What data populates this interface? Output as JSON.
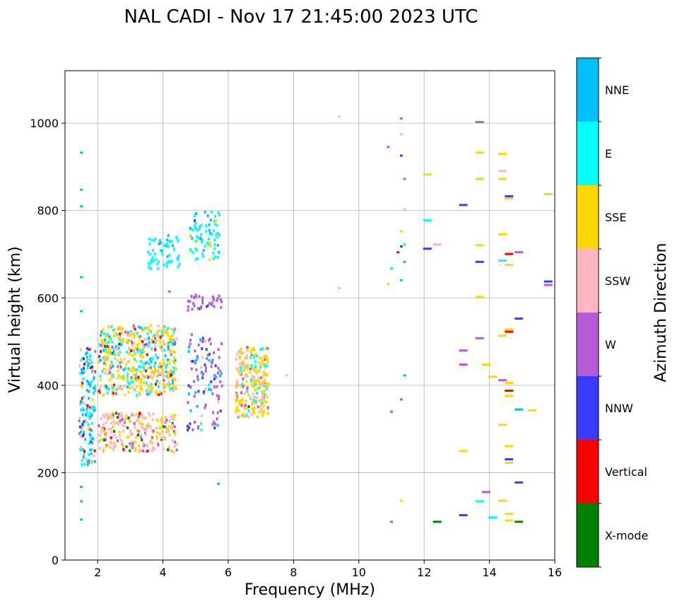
{
  "chart_data": {
    "type": "scatter",
    "title": "NAL CADI - Nov 17 21:45:00 2023 UTC",
    "xlabel": "Frequency (MHz)",
    "ylabel": "Virtual height (km)",
    "xlim": [
      1,
      16
    ],
    "ylim": [
      0,
      1120
    ],
    "xticks": [
      2,
      4,
      6,
      8,
      10,
      12,
      14,
      16
    ],
    "yticks": [
      0,
      200,
      400,
      600,
      800,
      1000
    ],
    "grid": true,
    "colorbar": {
      "label": "Azimuth Direction",
      "categories": [
        {
          "name": "X-mode",
          "color": "#008000"
        },
        {
          "name": "Vertical",
          "color": "#ff0000"
        },
        {
          "name": "NNW",
          "color": "#3a3aff"
        },
        {
          "name": "W",
          "color": "#b65ad6"
        },
        {
          "name": "SSW",
          "color": "#ffb6c1"
        },
        {
          "name": "SSE",
          "color": "#ffd700"
        },
        {
          "name": "E",
          "color": "#00ffff"
        },
        {
          "name": "NNE",
          "color": "#00bfff"
        }
      ]
    },
    "clusters": [
      {
        "x": [
          1.4,
          1.9
        ],
        "y": [
          220,
          490
        ],
        "n": 160,
        "dirs": [
          "NNE",
          "E",
          "SSW",
          "Vertical",
          "NNW",
          "SSE"
        ]
      },
      {
        "x": [
          2.0,
          4.4
        ],
        "y": [
          380,
          540
        ],
        "n": 520,
        "dirs": [
          "SSE",
          "E",
          "NNE",
          "SSW",
          "W",
          "Vertical",
          "X-mode"
        ]
      },
      {
        "x": [
          2.0,
          4.4
        ],
        "y": [
          250,
          340
        ],
        "n": 260,
        "dirs": [
          "SSW",
          "SSE",
          "W",
          "X-mode",
          "Vertical"
        ]
      },
      {
        "x": [
          3.5,
          4.5
        ],
        "y": [
          670,
          750
        ],
        "n": 60,
        "dirs": [
          "E",
          "NNE"
        ]
      },
      {
        "x": [
          4.8,
          5.7
        ],
        "y": [
          690,
          800
        ],
        "n": 80,
        "dirs": [
          "E",
          "NNE",
          "SSE",
          "NNW"
        ]
      },
      {
        "x": [
          4.7,
          5.8
        ],
        "y": [
          575,
          610
        ],
        "n": 35,
        "dirs": [
          "W",
          "NNW"
        ]
      },
      {
        "x": [
          4.7,
          5.8
        ],
        "y": [
          300,
          520
        ],
        "n": 110,
        "dirs": [
          "W",
          "NNE",
          "NNW",
          "SSW",
          "E"
        ]
      },
      {
        "x": [
          6.2,
          7.2
        ],
        "y": [
          330,
          490
        ],
        "n": 260,
        "dirs": [
          "SSE",
          "SSW",
          "E",
          "W",
          "X-mode"
        ]
      }
    ],
    "points": [
      {
        "x": 1.5,
        "y": 935,
        "dir": "NNE"
      },
      {
        "x": 1.5,
        "y": 850,
        "dir": "NNE"
      },
      {
        "x": 1.5,
        "y": 812,
        "dir": "NNE"
      },
      {
        "x": 1.5,
        "y": 650,
        "dir": "NNE"
      },
      {
        "x": 1.5,
        "y": 572,
        "dir": "NNE"
      },
      {
        "x": 1.5,
        "y": 170,
        "dir": "NNE"
      },
      {
        "x": 1.5,
        "y": 137,
        "dir": "NNE"
      },
      {
        "x": 1.5,
        "y": 95,
        "dir": "NNE"
      },
      {
        "x": 4.2,
        "y": 617,
        "dir": "W"
      },
      {
        "x": 5.7,
        "y": 177,
        "dir": "NNE"
      },
      {
        "x": 7.8,
        "y": 425,
        "dir": "SSW"
      },
      {
        "x": 9.4,
        "y": 1017,
        "dir": "SSW"
      },
      {
        "x": 9.4,
        "y": 625,
        "dir": "SSW"
      },
      {
        "x": 10.9,
        "y": 948,
        "dir": "W"
      },
      {
        "x": 10.9,
        "y": 635,
        "dir": "SSE"
      },
      {
        "x": 11.0,
        "y": 670,
        "dir": "E"
      },
      {
        "x": 11.0,
        "y": 342,
        "dir": "W"
      },
      {
        "x": 11.0,
        "y": 90,
        "dir": "W"
      },
      {
        "x": 11.3,
        "y": 1013,
        "dir": "W"
      },
      {
        "x": 11.3,
        "y": 977,
        "dir": "SSW"
      },
      {
        "x": 11.3,
        "y": 928,
        "dir": "NNW"
      },
      {
        "x": 11.3,
        "y": 755,
        "dir": "SSE"
      },
      {
        "x": 11.3,
        "y": 720,
        "dir": "X-mode"
      },
      {
        "x": 11.3,
        "y": 643,
        "dir": "NNE"
      },
      {
        "x": 11.2,
        "y": 707,
        "dir": "Vertical"
      },
      {
        "x": 11.3,
        "y": 370,
        "dir": "W"
      },
      {
        "x": 11.3,
        "y": 138,
        "dir": "SSE"
      },
      {
        "x": 11.4,
        "y": 875,
        "dir": "W"
      },
      {
        "x": 11.4,
        "y": 805,
        "dir": "SSW"
      },
      {
        "x": 11.4,
        "y": 725,
        "dir": "E"
      },
      {
        "x": 11.4,
        "y": 685,
        "dir": "NNE"
      },
      {
        "x": 11.4,
        "y": 425,
        "dir": "NNE"
      },
      {
        "x": 12.1,
        "y": 885,
        "dir": "SSE"
      },
      {
        "x": 12.1,
        "y": 780,
        "dir": "E"
      },
      {
        "x": 12.1,
        "y": 715,
        "dir": "NNW"
      },
      {
        "x": 12.4,
        "y": 725,
        "dir": "SSW"
      },
      {
        "x": 12.4,
        "y": 90,
        "dir": "X-mode"
      },
      {
        "x": 13.2,
        "y": 815,
        "dir": "NNW"
      },
      {
        "x": 13.2,
        "y": 482,
        "dir": "W"
      },
      {
        "x": 13.2,
        "y": 450,
        "dir": "W"
      },
      {
        "x": 13.2,
        "y": 252,
        "dir": "SSE"
      },
      {
        "x": 13.2,
        "y": 105,
        "dir": "NNW"
      },
      {
        "x": 13.7,
        "y": 1005,
        "dir": "W"
      },
      {
        "x": 13.7,
        "y": 935,
        "dir": "SSE"
      },
      {
        "x": 13.7,
        "y": 875,
        "dir": "SSE"
      },
      {
        "x": 13.7,
        "y": 723,
        "dir": "SSE"
      },
      {
        "x": 13.7,
        "y": 685,
        "dir": "NNW"
      },
      {
        "x": 13.7,
        "y": 605,
        "dir": "SSE"
      },
      {
        "x": 13.7,
        "y": 510,
        "dir": "W"
      },
      {
        "x": 13.7,
        "y": 137,
        "dir": "E"
      },
      {
        "x": 13.9,
        "y": 450,
        "dir": "SSE"
      },
      {
        "x": 13.9,
        "y": 158,
        "dir": "W"
      },
      {
        "x": 14.1,
        "y": 422,
        "dir": "SSE"
      },
      {
        "x": 14.1,
        "y": 100,
        "dir": "E"
      },
      {
        "x": 14.4,
        "y": 932,
        "dir": "SSE"
      },
      {
        "x": 14.4,
        "y": 893,
        "dir": "SSW"
      },
      {
        "x": 14.4,
        "y": 875,
        "dir": "SSE"
      },
      {
        "x": 14.4,
        "y": 748,
        "dir": "SSE"
      },
      {
        "x": 14.4,
        "y": 688,
        "dir": "E"
      },
      {
        "x": 14.4,
        "y": 516,
        "dir": "SSE"
      },
      {
        "x": 14.4,
        "y": 414,
        "dir": "W"
      },
      {
        "x": 14.4,
        "y": 312,
        "dir": "SSE"
      },
      {
        "x": 14.4,
        "y": 138,
        "dir": "SSE"
      },
      {
        "x": 14.6,
        "y": 835,
        "dir": "NNW"
      },
      {
        "x": 14.6,
        "y": 830,
        "dir": "SSE"
      },
      {
        "x": 14.6,
        "y": 703,
        "dir": "Vertical"
      },
      {
        "x": 14.6,
        "y": 678,
        "dir": "SSE"
      },
      {
        "x": 14.6,
        "y": 530,
        "dir": "SSE"
      },
      {
        "x": 14.6,
        "y": 525,
        "dir": "Vertical"
      },
      {
        "x": 14.6,
        "y": 408,
        "dir": "SSE"
      },
      {
        "x": 14.6,
        "y": 390,
        "dir": "Vertical"
      },
      {
        "x": 14.6,
        "y": 378,
        "dir": "SSE"
      },
      {
        "x": 14.6,
        "y": 263,
        "dir": "SSE"
      },
      {
        "x": 14.6,
        "y": 233,
        "dir": "NNW"
      },
      {
        "x": 14.6,
        "y": 225,
        "dir": "SSE"
      },
      {
        "x": 14.6,
        "y": 108,
        "dir": "SSE"
      },
      {
        "x": 14.6,
        "y": 93,
        "dir": "SSE"
      },
      {
        "x": 14.9,
        "y": 707,
        "dir": "W"
      },
      {
        "x": 14.9,
        "y": 555,
        "dir": "NNW"
      },
      {
        "x": 14.9,
        "y": 347,
        "dir": "NNE"
      },
      {
        "x": 14.9,
        "y": 180,
        "dir": "NNW"
      },
      {
        "x": 14.9,
        "y": 90,
        "dir": "X-mode"
      },
      {
        "x": 15.3,
        "y": 345,
        "dir": "SSE"
      },
      {
        "x": 15.8,
        "y": 840,
        "dir": "SSE"
      },
      {
        "x": 15.8,
        "y": 640,
        "dir": "NNW"
      },
      {
        "x": 15.8,
        "y": 632,
        "dir": "W"
      }
    ]
  }
}
